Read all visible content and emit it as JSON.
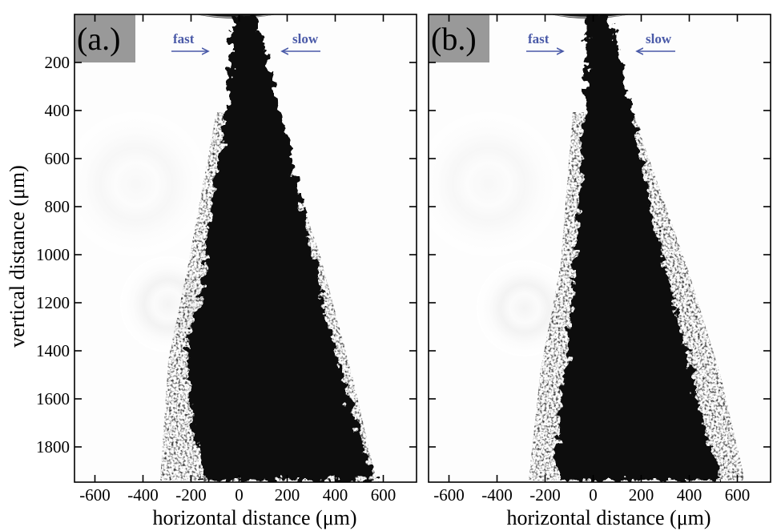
{
  "figure": {
    "y_axis_title": "vertical distance (μm)",
    "y_ticks": [
      200,
      400,
      600,
      800,
      1000,
      1200,
      1400,
      1600,
      1800
    ],
    "x_ticks": [
      -600,
      -400,
      -200,
      0,
      200,
      400,
      600
    ],
    "arrow_color": "#4a5aa8",
    "panels": [
      {
        "label": "(a.)",
        "x_axis_title": "horizontal distance (μm)",
        "left_arrow_label": "fast",
        "right_arrow_label": "slow"
      },
      {
        "label": "(b.)",
        "x_axis_title": "horizontal distance (μm)",
        "left_arrow_label": "fast",
        "right_arrow_label": "slow"
      }
    ]
  }
}
